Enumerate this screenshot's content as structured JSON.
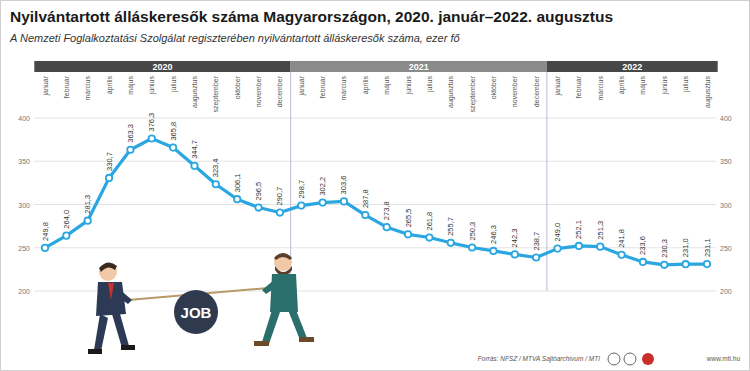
{
  "chart_data": {
    "type": "line",
    "title": "Nyilvántartott álláskeresők száma Magyarországon, 2020. január–2022. augusztus",
    "subtitle": "A Nemzeti Foglalkoztatási Szolgálat regiszterében nyilvántartott álláskeresők száma, ezer fő",
    "categories": [
      "január",
      "február",
      "március",
      "április",
      "május",
      "június",
      "július",
      "augusztus",
      "szeptember",
      "október",
      "november",
      "december",
      "január",
      "február",
      "március",
      "április",
      "május",
      "június",
      "július",
      "augusztus",
      "szeptember",
      "október",
      "november",
      "december",
      "január",
      "február",
      "március",
      "április",
      "május",
      "június",
      "július",
      "augusztus"
    ],
    "values": [
      249.8,
      264.0,
      281.3,
      330.7,
      363.3,
      376.3,
      365.8,
      344.7,
      323.4,
      306.1,
      296.5,
      290.7,
      298.7,
      302.2,
      303.6,
      287.8,
      273.8,
      265.5,
      261.8,
      255.7,
      250.3,
      246.3,
      242.3,
      238.7,
      249.0,
      252.1,
      251.3,
      241.8,
      233.6,
      230.3,
      231.0,
      231.1
    ],
    "value_labels": [
      "249,8",
      "264,0",
      "281,3",
      "330,7",
      "363,3",
      "376,3",
      "365,8",
      "344,7",
      "323,4",
      "306,1",
      "296,5",
      "290,7",
      "298,7",
      "302,2",
      "303,6",
      "287,8",
      "273,8",
      "265,5",
      "261,8",
      "255,7",
      "250,3",
      "246,3",
      "242,3",
      "238,7",
      "249,0",
      "252,1",
      "251,3",
      "241,8",
      "233,6",
      "230,3",
      "231,0",
      "231,1"
    ],
    "color": "#2aa6e0",
    "marker": "circle",
    "data_labels": true,
    "ylim": [
      200,
      400
    ],
    "yticks": [
      200,
      250,
      300,
      350,
      400
    ],
    "grid": true,
    "year_groups": [
      {
        "label": "2020",
        "start": 0,
        "end": 11
      },
      {
        "label": "2021",
        "start": 12,
        "end": 23
      },
      {
        "label": "2022",
        "start": 24,
        "end": 31
      }
    ],
    "illustration_text": "JOB",
    "source": "Forrás: NFSZ / MTVA Sajtóarchívum / MTI",
    "website": "www.mti.hu"
  }
}
